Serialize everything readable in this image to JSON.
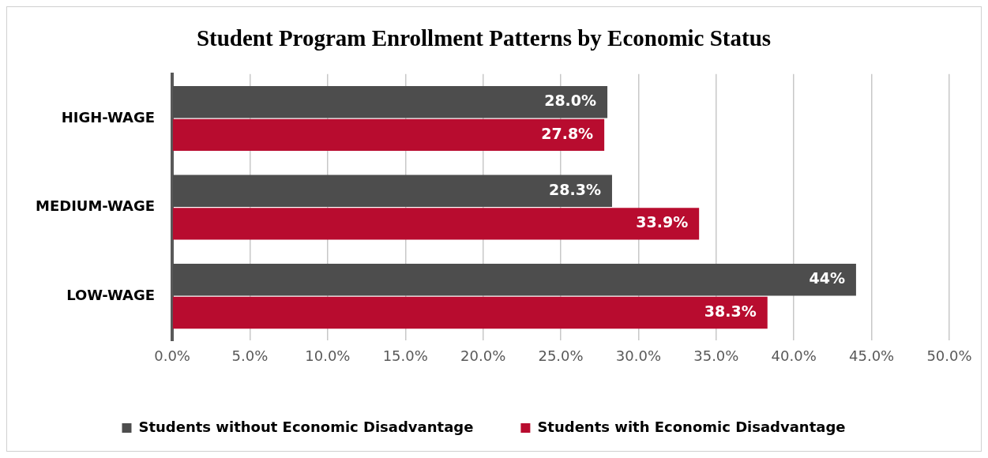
{
  "chart_data": {
    "type": "bar",
    "orientation": "horizontal",
    "title": "Student Program Enrollment Patterns by Economic Status",
    "categories": [
      "HIGH-WAGE",
      "MEDIUM-WAGE",
      "LOW-WAGE"
    ],
    "series": [
      {
        "name": "Students without Economic Disadvantage",
        "color": "#4d4d4d",
        "values": [
          28.0,
          28.3,
          44
        ],
        "value_labels": [
          "28.0%",
          "28.3%",
          "44%"
        ]
      },
      {
        "name": "Students with Economic Disadvantage",
        "color": "#b80c2f",
        "values": [
          27.8,
          33.9,
          38.3
        ],
        "value_labels": [
          "27.8%",
          "33.9%",
          "38.3%"
        ]
      }
    ],
    "xlim": [
      0,
      50
    ],
    "xticks": [
      {
        "value": 0,
        "label": "0.0%"
      },
      {
        "value": 5,
        "label": "5.0%"
      },
      {
        "value": 10,
        "label": "10.0%"
      },
      {
        "value": 15,
        "label": "15.0%"
      },
      {
        "value": 20,
        "label": "20.0%"
      },
      {
        "value": 25,
        "label": "25.0%"
      },
      {
        "value": 30,
        "label": "30.0%"
      },
      {
        "value": 35,
        "label": "35.0%"
      },
      {
        "value": 40,
        "label": "40.0%"
      },
      {
        "value": 45,
        "label": "45.0%"
      },
      {
        "value": 50,
        "label": "50.0%"
      }
    ],
    "grid": "x",
    "legend": "bottom"
  }
}
